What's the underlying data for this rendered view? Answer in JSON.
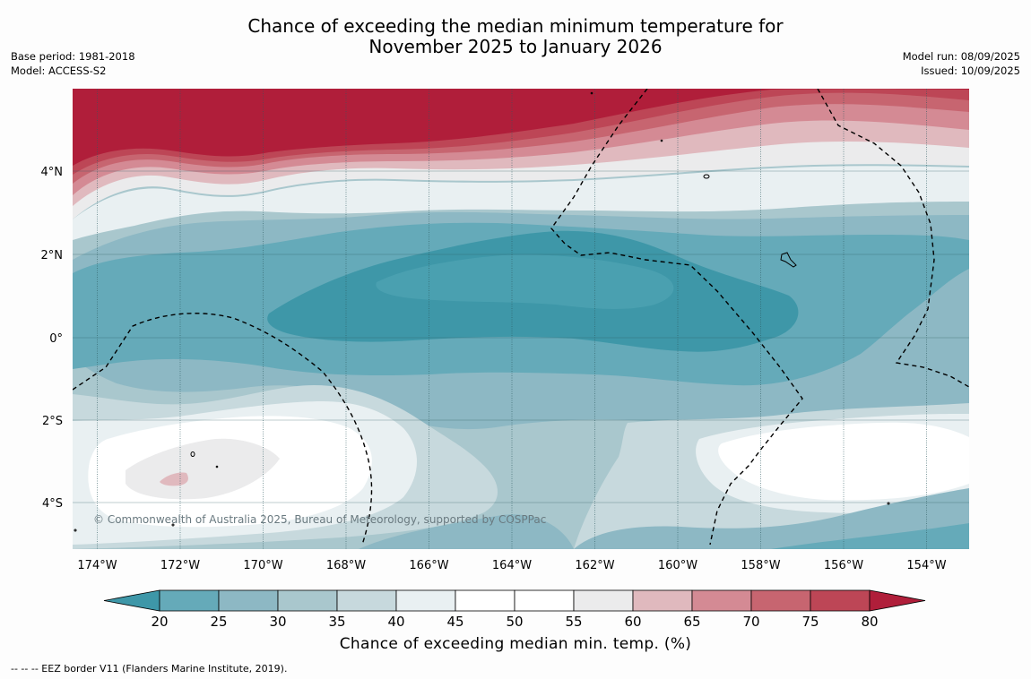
{
  "header": {
    "title_line1": "Chance of exceeding the median minimum temperature for",
    "title_line2": "November 2025 to January 2026",
    "base_period": "Base period: 1981-2018",
    "model": "Model: ACCESS-S2",
    "model_run": "Model run: 08/09/2025",
    "issued": "Issued: 10/09/2025"
  },
  "map": {
    "lat_labels": [
      "4°N",
      "2°N",
      "0°",
      "2°S",
      "4°S"
    ],
    "lon_labels": [
      "174°W",
      "172°W",
      "170°W",
      "168°W",
      "166°W",
      "164°W",
      "162°W",
      "160°W",
      "158°W",
      "156°W",
      "154°W"
    ],
    "copyright": "© Commonwealth of Australia 2025, Bureau of Meteorology, supported by COSPPac"
  },
  "colorbar": {
    "ticks": [
      "20",
      "25",
      "30",
      "35",
      "40",
      "45",
      "50",
      "55",
      "60",
      "65",
      "70",
      "75",
      "80"
    ],
    "colors": [
      "#3e97a8",
      "#65aab9",
      "#8db8c4",
      "#a9c7cd",
      "#c7d9dd",
      "#e9f0f2",
      "#ffffff",
      "#ffffff",
      "#ebebec",
      "#e0b9be",
      "#d48a94",
      "#c76570",
      "#bd4656",
      "#b01e3a"
    ],
    "title": "Chance of exceeding median min. temp. (%)"
  },
  "footnote": "--  --  -- EEZ border V11 (Flanders Marine Institute, 2019)."
}
